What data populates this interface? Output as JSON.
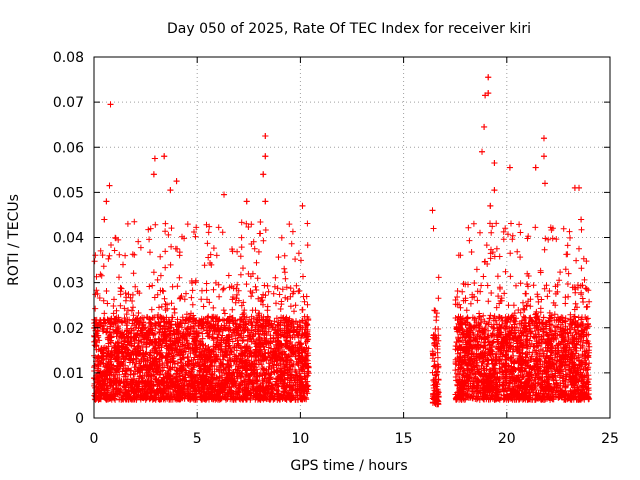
{
  "chart_data": {
    "type": "scatter",
    "title": "Day 050 of 2025, Rate Of TEC Index for receiver kiri",
    "xlabel": "GPS time / hours",
    "ylabel": "ROTI / TECUs",
    "xlim": [
      0,
      25
    ],
    "ylim": [
      0,
      0.08
    ],
    "grid": true,
    "marker": "+",
    "color": "#ff0000",
    "x_ticks": [
      0,
      5,
      10,
      15,
      20,
      25
    ],
    "x_tick_labels": [
      "0",
      "5",
      "10",
      "15",
      "20",
      "25"
    ],
    "y_ticks": [
      0,
      0.01,
      0.02,
      0.03,
      0.04,
      0.05,
      0.06,
      0.07,
      0.08
    ],
    "y_tick_labels": [
      "0",
      "0.01",
      "0.02",
      "0.03",
      "0.04",
      "0.05",
      "0.06",
      "0.07",
      "0.08"
    ],
    "data_segments": [
      {
        "start_hour": 0.0,
        "end_hour": 10.4,
        "typical_range": [
          0.004,
          0.03
        ]
      },
      {
        "start_hour": 16.4,
        "end_hour": 16.7,
        "typical_range": [
          0.003,
          0.025
        ]
      },
      {
        "start_hour": 17.5,
        "end_hour": 24.0,
        "typical_range": [
          0.004,
          0.03
        ]
      }
    ],
    "notable_points": [
      {
        "x": 0.8,
        "y": 0.0695
      },
      {
        "x": 0.75,
        "y": 0.0515
      },
      {
        "x": 0.6,
        "y": 0.048
      },
      {
        "x": 0.5,
        "y": 0.044
      },
      {
        "x": 2.95,
        "y": 0.0575
      },
      {
        "x": 2.9,
        "y": 0.054
      },
      {
        "x": 3.4,
        "y": 0.058
      },
      {
        "x": 3.7,
        "y": 0.0505
      },
      {
        "x": 4.0,
        "y": 0.0525
      },
      {
        "x": 6.3,
        "y": 0.0495
      },
      {
        "x": 7.4,
        "y": 0.048
      },
      {
        "x": 8.3,
        "y": 0.0625
      },
      {
        "x": 8.3,
        "y": 0.058
      },
      {
        "x": 8.2,
        "y": 0.054
      },
      {
        "x": 8.3,
        "y": 0.048
      },
      {
        "x": 10.1,
        "y": 0.047
      },
      {
        "x": 16.4,
        "y": 0.046
      },
      {
        "x": 16.45,
        "y": 0.042
      },
      {
        "x": 18.9,
        "y": 0.0645
      },
      {
        "x": 18.8,
        "y": 0.059
      },
      {
        "x": 19.1,
        "y": 0.0755
      },
      {
        "x": 19.1,
        "y": 0.072
      },
      {
        "x": 18.95,
        "y": 0.0715
      },
      {
        "x": 19.4,
        "y": 0.0565
      },
      {
        "x": 19.4,
        "y": 0.0505
      },
      {
        "x": 19.2,
        "y": 0.047
      },
      {
        "x": 20.15,
        "y": 0.0555
      },
      {
        "x": 21.4,
        "y": 0.0555
      },
      {
        "x": 21.8,
        "y": 0.062
      },
      {
        "x": 21.8,
        "y": 0.058
      },
      {
        "x": 21.85,
        "y": 0.052
      },
      {
        "x": 23.3,
        "y": 0.051
      },
      {
        "x": 23.5,
        "y": 0.051
      },
      {
        "x": 23.6,
        "y": 0.044
      }
    ]
  }
}
